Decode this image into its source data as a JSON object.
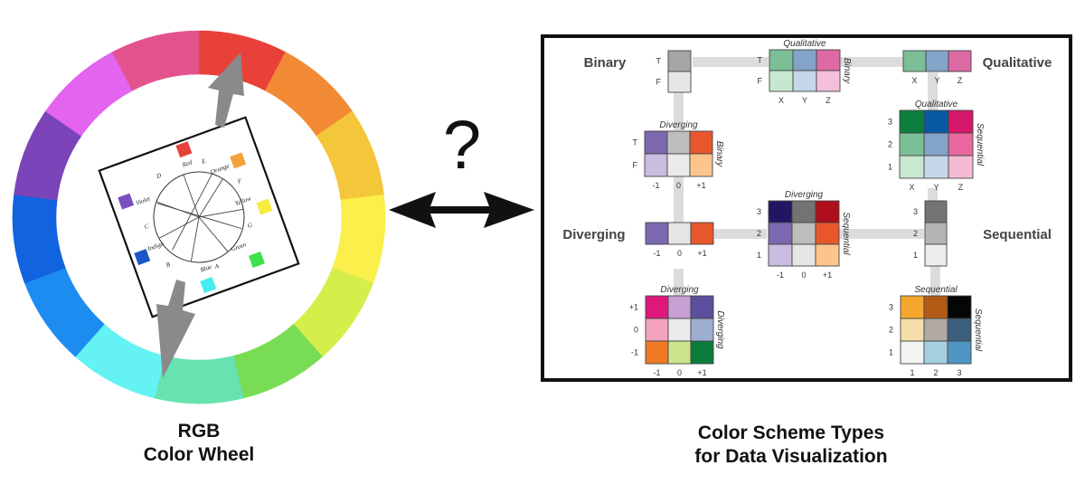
{
  "left_caption": {
    "line1": "RGB",
    "line2": "Color Wheel"
  },
  "right_caption": {
    "line1": "Color Scheme Types",
    "line2": "for Data Visualization"
  },
  "question_mark": "?",
  "wheel": {
    "segments": [
      "#e8413a",
      "#f28a35",
      "#f4c63a",
      "#fbef4c",
      "#d4ef49",
      "#78dd54",
      "#67e3b2",
      "#64f2f4",
      "#1d8cf0",
      "#1163e0",
      "#7b44b8",
      "#e264ef",
      "#e4528d"
    ]
  },
  "newton_diagram": {
    "labels": [
      "Red",
      "Orange",
      "Yellow",
      "Green",
      "Blue",
      "Indigo",
      "Violet",
      "D",
      "E",
      "F",
      "G",
      "A",
      "B",
      "C"
    ]
  },
  "schemes": {
    "titles": {
      "binary": "Binary",
      "qualitative": "Qualitative",
      "diverging": "Diverging",
      "sequential": "Sequential"
    },
    "binary": {
      "row_labels": [
        "T",
        "F"
      ],
      "cells": [
        "#a6a6a6",
        "#e6e6e6"
      ]
    },
    "qual_binary": {
      "top_label": "Qualitative",
      "side_label": "Binary",
      "row_labels": [
        "T",
        "F"
      ],
      "col_labels": [
        "X",
        "Y",
        "Z"
      ],
      "cells": [
        [
          "#7cbf97",
          "#83a3c8",
          "#de6aa5"
        ],
        [
          "#c6e8d0",
          "#c3d7e8",
          "#f4bfdc"
        ]
      ]
    },
    "qualitative": {
      "col_labels": [
        "X",
        "Y",
        "Z"
      ],
      "cells": [
        "#7cbf97",
        "#83a3c8",
        "#de6aa5"
      ]
    },
    "div_binary": {
      "top_label": "Diverging",
      "side_label": "Binary",
      "row_labels": [
        "T",
        "F"
      ],
      "col_labels": [
        "-1",
        "0",
        "+1"
      ],
      "cells": [
        [
          "#7b68ae",
          "#bdbdbd",
          "#e8572c"
        ],
        [
          "#c9bde0",
          "#ebebeb",
          "#fcc58c"
        ]
      ]
    },
    "qual_sequential": {
      "top_label": "Qualitative",
      "side_label": "Sequential",
      "row_labels": [
        "3",
        "2",
        "1"
      ],
      "col_labels": [
        "X",
        "Y",
        "Z"
      ],
      "cells": [
        [
          "#0c7f3e",
          "#0859a4",
          "#d6166b"
        ],
        [
          "#7cbf97",
          "#83a3c8",
          "#e8689f"
        ],
        [
          "#c8e8cf",
          "#c5d8eb",
          "#f5bbd4"
        ]
      ]
    },
    "diverging": {
      "col_labels": [
        "-1",
        "0",
        "+1"
      ],
      "cells": [
        "#7b68ae",
        "#e6e6e6",
        "#e8572c"
      ]
    },
    "div_sequential": {
      "top_label": "Diverging",
      "side_label": "Sequential",
      "row_labels": [
        "3",
        "2",
        "1"
      ],
      "col_labels": [
        "-1",
        "0",
        "+1"
      ],
      "cells": [
        [
          "#231563",
          "#737373",
          "#ad0f1c"
        ],
        [
          "#7b68ae",
          "#bdbdbd",
          "#e8572c"
        ],
        [
          "#c9bde0",
          "#e6e6e6",
          "#fcc58c"
        ]
      ]
    },
    "sequential": {
      "row_labels": [
        "3",
        "2",
        "1"
      ],
      "cells": [
        "#747474",
        "#b4b4b4",
        "#ececec"
      ]
    },
    "div_diverging": {
      "top_label": "Diverging",
      "side_label": "Diverging",
      "row_labels": [
        "+1",
        "0",
        "-1"
      ],
      "col_labels": [
        "-1",
        "0",
        "+1"
      ],
      "cells": [
        [
          "#e0187c",
          "#c6a0d2",
          "#5b4f9e"
        ],
        [
          "#f3a3bd",
          "#ebebeb",
          "#9eaed3"
        ],
        [
          "#ef7a22",
          "#cde38c",
          "#0b7e3c"
        ]
      ]
    },
    "seq_sequential": {
      "top_label": "Sequential",
      "side_label": "Sequential",
      "row_labels": [
        "3",
        "2",
        "1"
      ],
      "col_labels": [
        "1",
        "2",
        "3"
      ],
      "cells": [
        [
          "#f4a72c",
          "#b15b17",
          "#060606"
        ],
        [
          "#f5deaa",
          "#b0a9a2",
          "#3b5f7c"
        ],
        [
          "#f3f3f3",
          "#a6cfe0",
          "#4e96c1"
        ]
      ]
    }
  }
}
